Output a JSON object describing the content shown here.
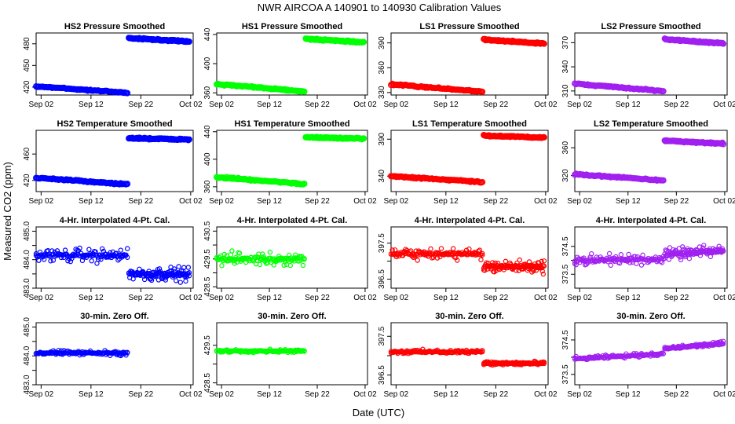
{
  "figure": {
    "title": "NWR   AIRCOA A   140901 to 140930   Calibration Values",
    "xlabel": "Date (UTC)",
    "ylabel": "Measured CO2 (ppm)"
  },
  "colors": {
    "HS2": "#0000ff",
    "HS1": "#00ff00",
    "LS1": "#ff0000",
    "LS2": "#a020f0"
  },
  "x_axis": {
    "range_days": [
      0,
      31.5
    ],
    "tick_positions_days": [
      1,
      11,
      21,
      31
    ],
    "tick_labels": [
      "Sep 02",
      "Sep 12",
      "Sep 22",
      "Oct 02"
    ]
  },
  "chart_data": [
    {
      "type": "scatter",
      "title": "HS2 Pressure Smoothed",
      "series": "HS2",
      "ylim": [
        409,
        495
      ],
      "yticks": [
        420,
        450,
        480
      ],
      "segments": [
        {
          "x": [
            0,
            18.3
          ],
          "y": [
            421,
            412
          ]
        },
        {
          "x": [
            18.6,
            30.7
          ],
          "y": [
            488,
            483
          ]
        }
      ]
    },
    {
      "type": "scatter",
      "title": "HS1 Pressure Smoothed",
      "series": "HS1",
      "ylim": [
        357,
        442
      ],
      "yticks": [
        360,
        400,
        440
      ],
      "segments": [
        {
          "x": [
            0,
            18.3
          ],
          "y": [
            372,
            362
          ]
        },
        {
          "x": [
            18.6,
            30.7
          ],
          "y": [
            434,
            429
          ]
        }
      ]
    },
    {
      "type": "scatter",
      "title": "LS1 Pressure Smoothed",
      "series": "LS1",
      "ylim": [
        327,
        402
      ],
      "yticks": [
        330,
        360,
        390
      ],
      "segments": [
        {
          "x": [
            0,
            18.3
          ],
          "y": [
            340,
            331
          ]
        },
        {
          "x": [
            18.6,
            30.7
          ],
          "y": [
            394,
            389
          ]
        }
      ]
    },
    {
      "type": "scatter",
      "title": "LS2 Pressure Smoothed",
      "series": "LS2",
      "ylim": [
        305,
        382
      ],
      "yticks": [
        310,
        340,
        370
      ],
      "segments": [
        {
          "x": [
            0,
            18.3
          ],
          "y": [
            319,
            310
          ]
        },
        {
          "x": [
            18.6,
            30.7
          ],
          "y": [
            374,
            369
          ]
        }
      ]
    },
    {
      "type": "scatter",
      "title": "HS2 Temperature Smoothed",
      "series": "HS2",
      "ylim": [
        403,
        496
      ],
      "yticks": [
        420,
        460
      ],
      "segments": [
        {
          "x": [
            0,
            18.3
          ],
          "y": [
            424,
            414
          ]
        },
        {
          "x": [
            18.6,
            30.7
          ],
          "y": [
            484,
            482
          ]
        }
      ]
    },
    {
      "type": "scatter",
      "title": "HS1 Temperature Smoothed",
      "series": "HS1",
      "ylim": [
        353,
        442
      ],
      "yticks": [
        360,
        400,
        440
      ],
      "segments": [
        {
          "x": [
            0,
            18.3
          ],
          "y": [
            374,
            364
          ]
        },
        {
          "x": [
            18.6,
            30.7
          ],
          "y": [
            432,
            430
          ]
        }
      ]
    },
    {
      "type": "scatter",
      "title": "LS1 Temperature Smoothed",
      "series": "LS1",
      "ylim": [
        319,
        402
      ],
      "yticks": [
        340,
        390
      ],
      "segments": [
        {
          "x": [
            0,
            18.3
          ],
          "y": [
            340,
            332
          ]
        },
        {
          "x": [
            18.6,
            30.7
          ],
          "y": [
            395,
            392
          ]
        }
      ]
    },
    {
      "type": "scatter",
      "title": "LS2 Temperature Smoothed",
      "series": "LS2",
      "ylim": [
        297,
        385
      ],
      "yticks": [
        320,
        360
      ],
      "segments": [
        {
          "x": [
            0,
            18.3
          ],
          "y": [
            322,
            313
          ]
        },
        {
          "x": [
            18.6,
            30.7
          ],
          "y": [
            370,
            366
          ]
        }
      ]
    },
    {
      "type": "scatter",
      "title": "4-Hr. Interpolated 4-Pt. Cal.",
      "series": "HS2",
      "ylim": [
        483.0,
        485.15
      ],
      "yticks": [
        483.0,
        483.5,
        484.0,
        484.5,
        485.0
      ],
      "ytick_labels": [
        "483.0",
        "",
        "484.0",
        "",
        "485.0"
      ],
      "segments": [
        {
          "x": [
            0,
            18.3
          ],
          "y": [
            484.15,
            484.15
          ],
          "spread": 0.35
        },
        {
          "x": [
            18.6,
            30.7
          ],
          "y": [
            483.5,
            483.5
          ],
          "spread": 0.35
        }
      ]
    },
    {
      "type": "scatter",
      "title": "4-Hr. Interpolated 4-Pt. Cal.",
      "series": "HS1",
      "ylim": [
        428.45,
        430.65
      ],
      "yticks": [
        428.5,
        429.0,
        429.5,
        430.0,
        430.5
      ],
      "ytick_labels": [
        "428.5",
        "",
        "429.5",
        "",
        "430.5"
      ],
      "segments": [
        {
          "x": [
            0,
            18.3
          ],
          "y": [
            429.5,
            429.5
          ],
          "spread": 0.35
        }
      ]
    },
    {
      "type": "scatter",
      "title": "4-Hr. Interpolated 4-Pt. Cal.",
      "series": "LS1",
      "ylim": [
        396.25,
        397.95
      ],
      "yticks": [
        396.5,
        397.0,
        397.5
      ],
      "ytick_labels": [
        "396.5",
        "",
        "397.5"
      ],
      "segments": [
        {
          "x": [
            0,
            18.3
          ],
          "y": [
            397.2,
            397.2
          ],
          "spread": 0.25
        },
        {
          "x": [
            18.6,
            30.7
          ],
          "y": [
            396.85,
            396.85
          ],
          "spread": 0.25
        }
      ]
    },
    {
      "type": "scatter",
      "title": "4-Hr. Interpolated 4-Pt. Cal.",
      "series": "LS2",
      "ylim": [
        373.0,
        375.2
      ],
      "yticks": [
        373.5,
        374.0,
        374.5
      ],
      "ytick_labels": [
        "373.5",
        "",
        "374.5"
      ],
      "segments": [
        {
          "x": [
            0,
            18.3
          ],
          "y": [
            374.0,
            374.05
          ],
          "spread": 0.3
        },
        {
          "x": [
            18.6,
            30.7
          ],
          "y": [
            374.2,
            374.35
          ],
          "spread": 0.3
        }
      ]
    },
    {
      "type": "scatter",
      "title": "30-min. Zero Off.",
      "series": "HS2",
      "ylim": [
        483.0,
        485.15
      ],
      "yticks": [
        483.0,
        483.5,
        484.0,
        484.5,
        485.0
      ],
      "ytick_labels": [
        "483.0",
        "",
        "484.0",
        "",
        "485.0"
      ],
      "segments": [
        {
          "x": [
            0,
            18.3
          ],
          "y": [
            484.1,
            484.1
          ],
          "spread": 0.12
        }
      ]
    },
    {
      "type": "scatter",
      "title": "30-min. Zero Off.",
      "series": "HS1",
      "ylim": [
        428.45,
        430.1
      ],
      "yticks": [
        428.5,
        429.0,
        429.5
      ],
      "ytick_labels": [
        "428.5",
        "",
        "429.5"
      ],
      "segments": [
        {
          "x": [
            0,
            18.3
          ],
          "y": [
            429.35,
            429.35
          ],
          "spread": 0.06
        }
      ]
    },
    {
      "type": "scatter",
      "title": "30-min. Zero Off.",
      "series": "LS1",
      "ylim": [
        396.25,
        397.85
      ],
      "yticks": [
        396.5,
        397.0,
        397.5
      ],
      "ytick_labels": [
        "396.5",
        "",
        "397.5"
      ],
      "segments": [
        {
          "x": [
            0,
            18.3
          ],
          "y": [
            397.1,
            397.1
          ],
          "spread": 0.08
        },
        {
          "x": [
            18.6,
            30.7
          ],
          "y": [
            396.8,
            396.8
          ],
          "spread": 0.08
        }
      ]
    },
    {
      "type": "scatter",
      "title": "30-min. Zero Off.",
      "series": "LS2",
      "ylim": [
        373.2,
        375.0
      ],
      "yticks": [
        373.5,
        374.0,
        374.5
      ],
      "ytick_labels": [
        "373.5",
        "",
        "374.5"
      ],
      "segments": [
        {
          "x": [
            0,
            18.3
          ],
          "y": [
            373.95,
            374.1
          ],
          "spread": 0.08
        },
        {
          "x": [
            18.6,
            30.7
          ],
          "y": [
            374.25,
            374.4
          ],
          "spread": 0.08
        }
      ]
    }
  ]
}
